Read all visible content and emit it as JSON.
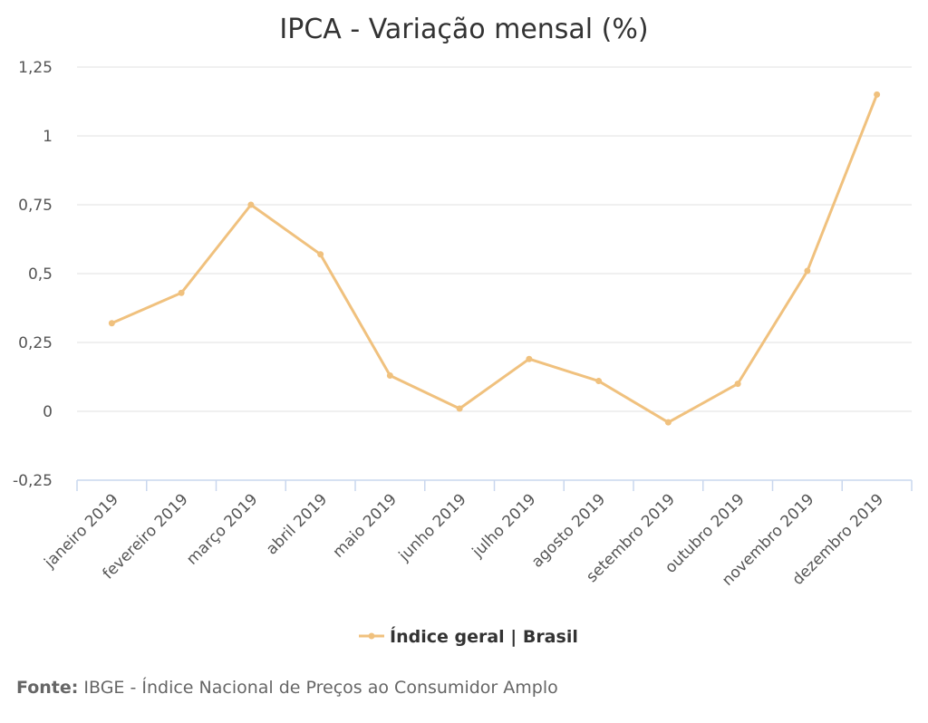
{
  "chart_data": {
    "type": "line",
    "title": "IPCA - Variação mensal (%)",
    "categories": [
      "janeiro 2019",
      "fevereiro 2019",
      "março 2019",
      "abril 2019",
      "maio 2019",
      "junho 2019",
      "julho 2019",
      "agosto 2019",
      "setembro 2019",
      "outubro 2019",
      "novembro 2019",
      "dezembro 2019"
    ],
    "series": [
      {
        "name": "Índice geral | Brasil",
        "values": [
          0.32,
          0.43,
          0.75,
          0.57,
          0.13,
          0.01,
          0.19,
          0.11,
          -0.04,
          0.1,
          0.51,
          1.15
        ]
      }
    ],
    "ylim": [
      -0.25,
      1.25
    ],
    "yticks": [
      -0.25,
      0,
      0.25,
      0.5,
      0.75,
      1,
      1.25
    ],
    "ytick_labels": [
      "-0,25",
      "0",
      "0,25",
      "0,5",
      "0,75",
      "1",
      "1,25"
    ],
    "grid": true,
    "legend_position": "bottom-center",
    "colors": {
      "series": "#f0c17e",
      "grid": "#e0e0e0",
      "axis": "#c9d7ee"
    }
  },
  "source": {
    "label": "Fonte:",
    "text": "IBGE - Índice Nacional de Preços ao Consumidor Amplo"
  }
}
